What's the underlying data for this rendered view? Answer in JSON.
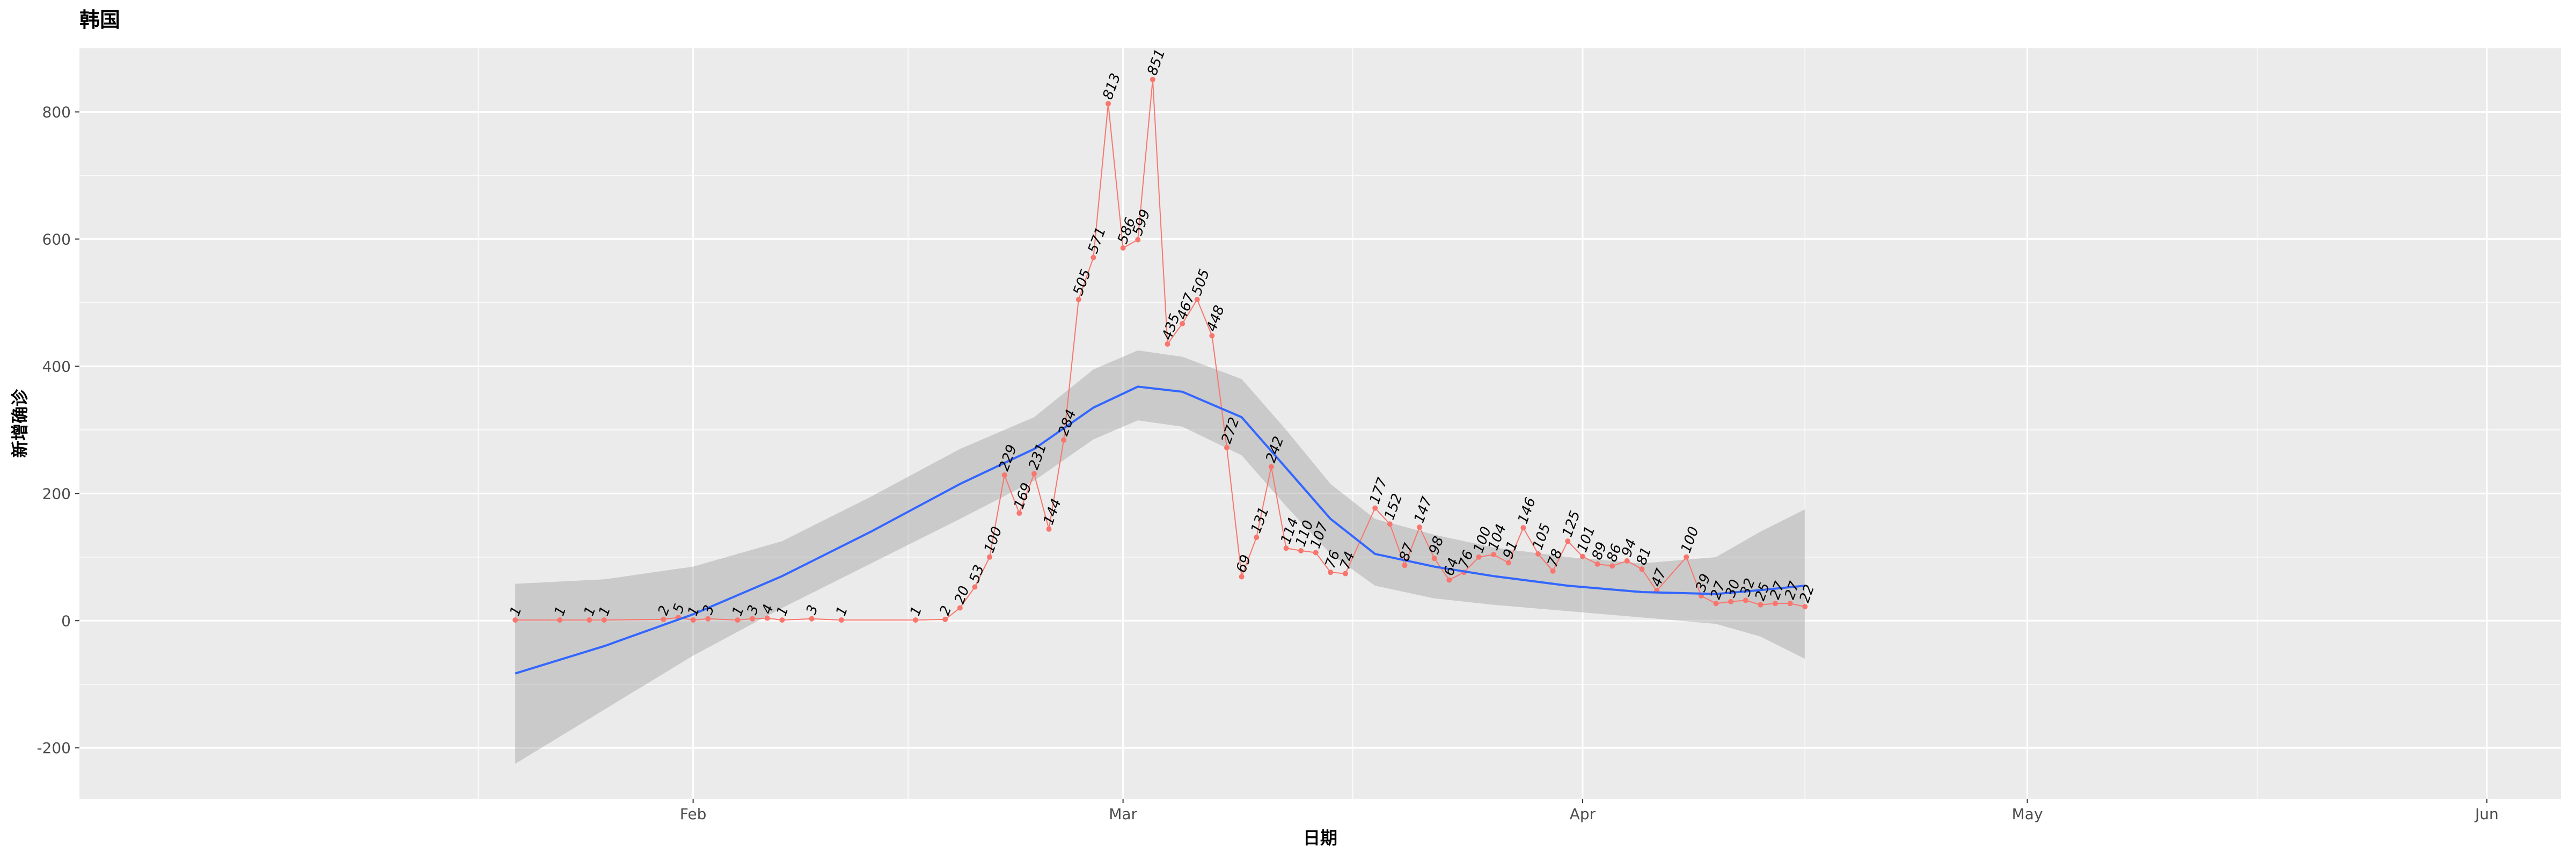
{
  "chart_data": {
    "type": "line",
    "title": "韩国",
    "xlabel": "日期",
    "ylabel": "新增确诊",
    "ylim": [
      -280,
      900
    ],
    "xlim_days": [
      -10.4,
      157
    ],
    "y_ticks": [
      -200,
      0,
      200,
      400,
      600,
      800
    ],
    "x_ticks": [
      {
        "label": "Feb",
        "day": 31
      },
      {
        "label": "Mar",
        "day": 60
      },
      {
        "label": "Apr",
        "day": 91
      },
      {
        "label": "May",
        "day": 121
      },
      {
        "label": "Jun",
        "day": 152
      }
    ],
    "x_minor_days": [
      16.5,
      45.5,
      75.5,
      106,
      136.5
    ],
    "grid": true,
    "legend": "none",
    "series": [
      {
        "name": "新增确诊",
        "color": "#F8766D",
        "points": [
          {
            "day": 19,
            "value": 1
          },
          {
            "day": 22,
            "value": 1
          },
          {
            "day": 24,
            "value": 1
          },
          {
            "day": 25,
            "value": 1
          },
          {
            "day": 29,
            "value": 2
          },
          {
            "day": 30,
            "value": 5
          },
          {
            "day": 31,
            "value": 1
          },
          {
            "day": 32,
            "value": 3
          },
          {
            "day": 34,
            "value": 1
          },
          {
            "day": 35,
            "value": 3
          },
          {
            "day": 36,
            "value": 4
          },
          {
            "day": 37,
            "value": 1
          },
          {
            "day": 39,
            "value": 3
          },
          {
            "day": 41,
            "value": 1
          },
          {
            "day": 46,
            "value": 1
          },
          {
            "day": 48,
            "value": 2
          },
          {
            "day": 49,
            "value": 20
          },
          {
            "day": 50,
            "value": 53
          },
          {
            "day": 51,
            "value": 100
          },
          {
            "day": 52,
            "value": 229
          },
          {
            "day": 53,
            "value": 169
          },
          {
            "day": 54,
            "value": 231
          },
          {
            "day": 55,
            "value": 144
          },
          {
            "day": 56,
            "value": 284
          },
          {
            "day": 57,
            "value": 505
          },
          {
            "day": 58,
            "value": 571
          },
          {
            "day": 59,
            "value": 813
          },
          {
            "day": 60,
            "value": 586
          },
          {
            "day": 61,
            "value": 599
          },
          {
            "day": 62,
            "value": 851
          },
          {
            "day": 63,
            "value": 435
          },
          {
            "day": 64,
            "value": 467
          },
          {
            "day": 65,
            "value": 505
          },
          {
            "day": 66,
            "value": 448
          },
          {
            "day": 67,
            "value": 272
          },
          {
            "day": 68,
            "value": 69
          },
          {
            "day": 69,
            "value": 131
          },
          {
            "day": 70,
            "value": 242
          },
          {
            "day": 71,
            "value": 114
          },
          {
            "day": 72,
            "value": 110
          },
          {
            "day": 73,
            "value": 107
          },
          {
            "day": 74,
            "value": 76
          },
          {
            "day": 75,
            "value": 74
          },
          {
            "day": 77,
            "value": 177
          },
          {
            "day": 78,
            "value": 152
          },
          {
            "day": 79,
            "value": 87
          },
          {
            "day": 80,
            "value": 147
          },
          {
            "day": 81,
            "value": 98
          },
          {
            "day": 82,
            "value": 64
          },
          {
            "day": 83,
            "value": 76
          },
          {
            "day": 84,
            "value": 100
          },
          {
            "day": 85,
            "value": 104
          },
          {
            "day": 86,
            "value": 91
          },
          {
            "day": 87,
            "value": 146
          },
          {
            "day": 88,
            "value": 105
          },
          {
            "day": 89,
            "value": 78
          },
          {
            "day": 90,
            "value": 125
          },
          {
            "day": 91,
            "value": 101
          },
          {
            "day": 92,
            "value": 89
          },
          {
            "day": 93,
            "value": 86
          },
          {
            "day": 94,
            "value": 94
          },
          {
            "day": 95,
            "value": 81
          },
          {
            "day": 96,
            "value": 47
          },
          {
            "day": 98,
            "value": 100
          },
          {
            "day": 99,
            "value": 39
          },
          {
            "day": 100,
            "value": 27
          },
          {
            "day": 101,
            "value": 30
          },
          {
            "day": 102,
            "value": 32
          },
          {
            "day": 103,
            "value": 25
          },
          {
            "day": 104,
            "value": 27
          },
          {
            "day": 105,
            "value": 27
          },
          {
            "day": 106,
            "value": 22
          }
        ]
      }
    ],
    "smooth": {
      "color": "#3366FF",
      "band_color": "#999999",
      "points": [
        {
          "day": 19,
          "fit": -83,
          "lower": -225,
          "upper": 58
        },
        {
          "day": 25,
          "fit": -40,
          "lower": -140,
          "upper": 65
        },
        {
          "day": 31,
          "fit": 10,
          "lower": -55,
          "upper": 85
        },
        {
          "day": 37,
          "fit": 70,
          "lower": 20,
          "upper": 125
        },
        {
          "day": 43,
          "fit": 140,
          "lower": 90,
          "upper": 195
        },
        {
          "day": 49,
          "fit": 215,
          "lower": 160,
          "upper": 270
        },
        {
          "day": 54,
          "fit": 270,
          "lower": 220,
          "upper": 320
        },
        {
          "day": 58,
          "fit": 335,
          "lower": 285,
          "upper": 395
        },
        {
          "day": 61,
          "fit": 368,
          "lower": 315,
          "upper": 425
        },
        {
          "day": 64,
          "fit": 360,
          "lower": 305,
          "upper": 415
        },
        {
          "day": 68,
          "fit": 320,
          "lower": 260,
          "upper": 380
        },
        {
          "day": 71,
          "fit": 240,
          "lower": 180,
          "upper": 300
        },
        {
          "day": 74,
          "fit": 160,
          "lower": 105,
          "upper": 215
        },
        {
          "day": 77,
          "fit": 105,
          "lower": 55,
          "upper": 160
        },
        {
          "day": 81,
          "fit": 85,
          "lower": 35,
          "upper": 135
        },
        {
          "day": 85,
          "fit": 70,
          "lower": 25,
          "upper": 115
        },
        {
          "day": 90,
          "fit": 55,
          "lower": 15,
          "upper": 100
        },
        {
          "day": 95,
          "fit": 45,
          "lower": 5,
          "upper": 90
        },
        {
          "day": 100,
          "fit": 42,
          "lower": -5,
          "upper": 100
        },
        {
          "day": 103,
          "fit": 48,
          "lower": -25,
          "upper": 140
        },
        {
          "day": 106,
          "fit": 55,
          "lower": -60,
          "upper": 175
        }
      ]
    }
  }
}
